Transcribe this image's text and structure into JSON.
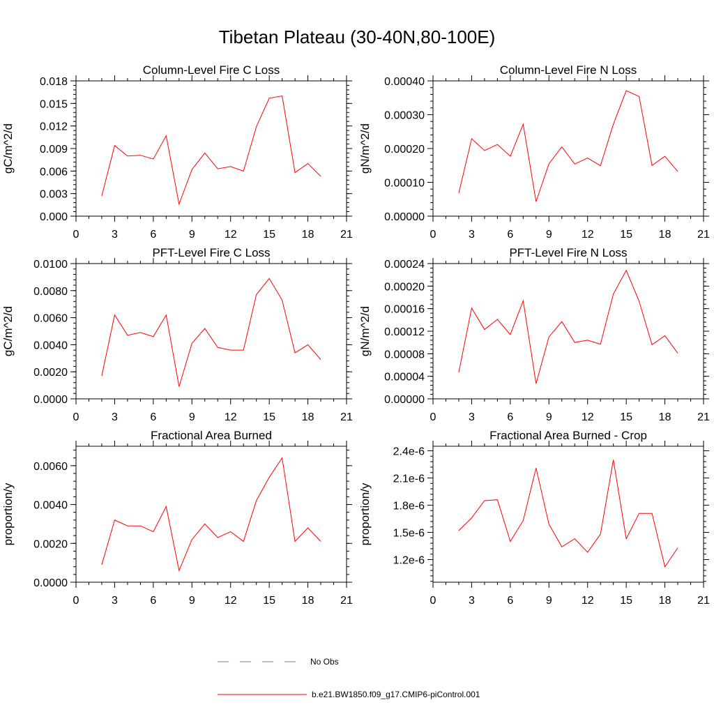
{
  "title": "Tibetan Plateau (30-40N,80-100E)",
  "colors": {
    "model": "#ff0000",
    "obs": "#7777aa",
    "axis": "#000000"
  },
  "legend": {
    "obs_label": "No Obs",
    "model_label": "b.e21.BW1850.f09_g17.CMIP6-piControl.001"
  },
  "chart_data": [
    {
      "type": "line",
      "title": "Column-Level Fire C Loss",
      "ylabel": "gC/m^2/d",
      "xlim": [
        0,
        21
      ],
      "x_ticks": [
        "0",
        "3",
        "6",
        "9",
        "12",
        "15",
        "18",
        "21"
      ],
      "ylim": [
        0,
        0.018
      ],
      "y_ticks": [
        0,
        0.003,
        0.006,
        0.009,
        0.012,
        0.015,
        0.018
      ],
      "y_tick_labels": [
        "0.000",
        "0.003",
        "0.006",
        "0.009",
        "0.012",
        "0.015",
        "0.018"
      ],
      "x": [
        2,
        3,
        4,
        5,
        6,
        7,
        8,
        9,
        10,
        11,
        12,
        13,
        14,
        15,
        16,
        17,
        18,
        19
      ],
      "series": [
        {
          "name": "b.e21.BW1850.f09_g17.CMIP6-piControl.001",
          "values": [
            0.0027,
            0.0094,
            0.008,
            0.0081,
            0.0076,
            0.0107,
            0.0016,
            0.0062,
            0.0084,
            0.0063,
            0.0066,
            0.006,
            0.0119,
            0.0157,
            0.016,
            0.0058,
            0.007,
            0.0053
          ]
        }
      ]
    },
    {
      "type": "line",
      "title": "Column-Level Fire N Loss",
      "ylabel": "gN/m^2/d",
      "xlim": [
        0,
        21
      ],
      "x_ticks": [
        "0",
        "3",
        "6",
        "9",
        "12",
        "15",
        "18",
        "21"
      ],
      "ylim": [
        0,
        0.0004
      ],
      "y_ticks": [
        0,
        0.0001,
        0.0002,
        0.0003,
        0.0004
      ],
      "y_tick_labels": [
        "0.00000",
        "0.00010",
        "0.00020",
        "0.00030",
        "0.00040"
      ],
      "x": [
        2,
        3,
        4,
        5,
        6,
        7,
        8,
        9,
        10,
        11,
        12,
        13,
        14,
        15,
        16,
        17,
        18,
        19
      ],
      "series": [
        {
          "name": "b.e21.BW1850.f09_g17.CMIP6-piControl.001",
          "values": [
            6.8e-05,
            0.000229,
            0.000194,
            0.000212,
            0.000177,
            0.000272,
            4.3e-05,
            0.000155,
            0.000205,
            0.000154,
            0.000172,
            0.000149,
            0.000272,
            0.000371,
            0.000354,
            0.00015,
            0.000177,
            0.000132
          ]
        }
      ]
    },
    {
      "type": "line",
      "title": "PFT-Level Fire C Loss",
      "ylabel": "gC/m^2/d",
      "xlim": [
        0,
        21
      ],
      "x_ticks": [
        "0",
        "3",
        "6",
        "9",
        "12",
        "15",
        "18",
        "21"
      ],
      "ylim": [
        0,
        0.01
      ],
      "y_ticks": [
        0,
        0.002,
        0.004,
        0.006,
        0.008,
        0.01
      ],
      "y_tick_labels": [
        "0.0000",
        "0.0020",
        "0.0040",
        "0.0060",
        "0.0080",
        "0.0100"
      ],
      "x": [
        2,
        3,
        4,
        5,
        6,
        7,
        8,
        9,
        10,
        11,
        12,
        13,
        14,
        15,
        16,
        17,
        18,
        19
      ],
      "series": [
        {
          "name": "b.e21.BW1850.f09_g17.CMIP6-piControl.001",
          "values": [
            0.0017,
            0.0062,
            0.0047,
            0.0049,
            0.0046,
            0.0062,
            0.0009,
            0.0041,
            0.0052,
            0.0038,
            0.0036,
            0.0036,
            0.0077,
            0.0089,
            0.0073,
            0.0034,
            0.004,
            0.0029
          ]
        }
      ]
    },
    {
      "type": "line",
      "title": "PFT-Level Fire N Loss",
      "ylabel": "gN/m^2/d",
      "xlim": [
        0,
        21
      ],
      "x_ticks": [
        "0",
        "3",
        "6",
        "9",
        "12",
        "15",
        "18",
        "21"
      ],
      "ylim": [
        0,
        0.00024
      ],
      "y_ticks": [
        0,
        4e-05,
        8e-05,
        0.00012,
        0.00016,
        0.0002,
        0.00024
      ],
      "y_tick_labels": [
        "0.00000",
        "0.00004",
        "0.00008",
        "0.00012",
        "0.00016",
        "0.00020",
        "0.00024"
      ],
      "x": [
        2,
        3,
        4,
        5,
        6,
        7,
        8,
        9,
        10,
        11,
        12,
        13,
        14,
        15,
        16,
        17,
        18,
        19
      ],
      "series": [
        {
          "name": "b.e21.BW1850.f09_g17.CMIP6-piControl.001",
          "values": [
            4.7e-05,
            0.000161,
            0.000123,
            0.000141,
            0.000114,
            0.000174,
            2.7e-05,
            0.00011,
            0.000137,
            0.0001,
            0.000104,
            9.7e-05,
            0.000186,
            0.000228,
            0.000173,
            9.6e-05,
            0.000112,
            8.1e-05
          ]
        }
      ]
    },
    {
      "type": "line",
      "title": "Fractional Area Burned",
      "ylabel": "proportion/y",
      "xlim": [
        0,
        21
      ],
      "x_ticks": [
        "0",
        "3",
        "6",
        "9",
        "12",
        "15",
        "18",
        "21"
      ],
      "ylim": [
        0,
        0.007
      ],
      "y_ticks": [
        0,
        0.002,
        0.004,
        0.006
      ],
      "y_tick_labels": [
        "0.0000",
        "0.0020",
        "0.0040",
        "0.0060"
      ],
      "x": [
        2,
        3,
        4,
        5,
        6,
        7,
        8,
        9,
        10,
        11,
        12,
        13,
        14,
        15,
        16,
        17,
        18,
        19
      ],
      "series": [
        {
          "name": "b.e21.BW1850.f09_g17.CMIP6-piControl.001",
          "values": [
            0.0009,
            0.0032,
            0.0029,
            0.0029,
            0.0026,
            0.0039,
            0.0006,
            0.0022,
            0.003,
            0.0023,
            0.0026,
            0.0021,
            0.0042,
            0.0054,
            0.0064,
            0.0021,
            0.0028,
            0.0021
          ]
        }
      ]
    },
    {
      "type": "line",
      "title": "Fractional Area Burned - Crop",
      "ylabel": "proportion/y",
      "xlim": [
        0,
        21
      ],
      "x_ticks": [
        "0",
        "3",
        "6",
        "9",
        "12",
        "15",
        "18",
        "21"
      ],
      "ylim": [
        9.5e-07,
        2.45e-06
      ],
      "y_ticks": [
        1.2e-06,
        1.5e-06,
        1.8e-06,
        2.1e-06,
        2.4e-06
      ],
      "y_tick_labels": [
        "1.2e-6",
        "1.5e-6",
        "1.8e-6",
        "2.1e-6",
        "2.4e-6"
      ],
      "x": [
        2,
        3,
        4,
        5,
        6,
        7,
        8,
        9,
        10,
        11,
        12,
        13,
        14,
        15,
        16,
        17,
        18,
        19
      ],
      "series": [
        {
          "name": "b.e21.BW1850.f09_g17.CMIP6-piControl.001",
          "values": [
            1.52e-06,
            1.66e-06,
            1.85e-06,
            1.86e-06,
            1.4e-06,
            1.63e-06,
            2.21e-06,
            1.59e-06,
            1.34e-06,
            1.43e-06,
            1.28e-06,
            1.48e-06,
            2.3e-06,
            1.43e-06,
            1.71e-06,
            1.71e-06,
            1.12e-06,
            1.33e-06
          ]
        }
      ]
    }
  ]
}
